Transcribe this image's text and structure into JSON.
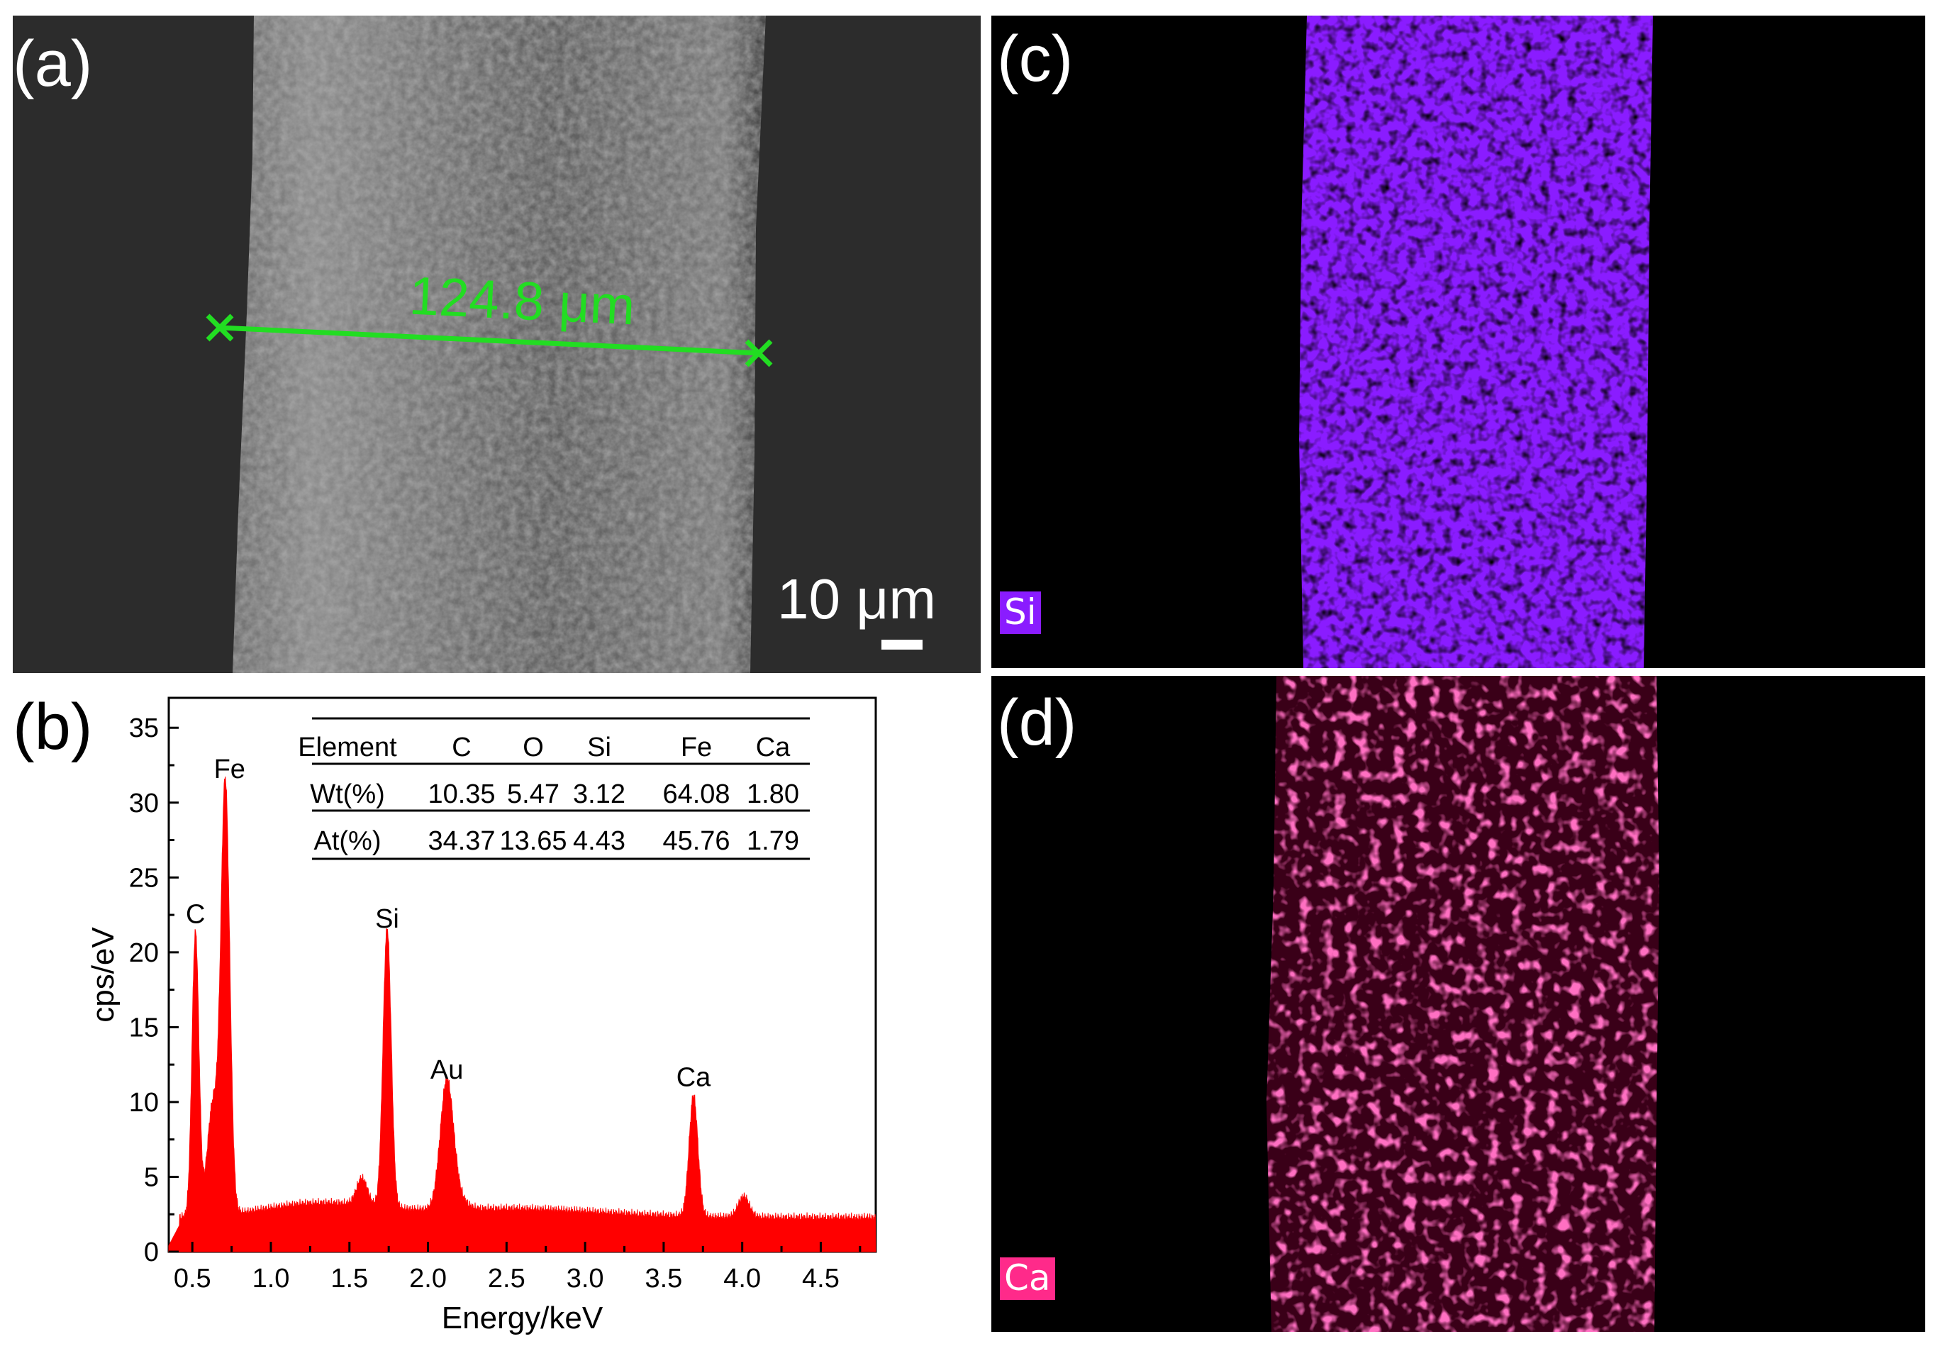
{
  "panels": {
    "a": {
      "letter": "(a)",
      "measure_label": "124.8 μm",
      "scale_bar_label": "10 μm",
      "measure_color": "#22dd22"
    },
    "b": {
      "letter": "(b)",
      "table": {
        "headers": [
          "Element",
          "C",
          "O",
          "Si",
          "Fe",
          "Ca"
        ],
        "rows": [
          [
            "Wt(%)",
            "10.35",
            "5.47",
            "3.12",
            "64.08",
            "1.80"
          ],
          [
            "At(%)",
            "34.37",
            "13.65",
            "4.43",
            "45.76",
            "1.79"
          ]
        ]
      }
    },
    "c": {
      "letter": "(c)",
      "element_tag": "Si",
      "color": "#8a1cff"
    },
    "d": {
      "letter": "(d)",
      "element_tag": "Ca",
      "color": "#ff2a8a"
    }
  },
  "chart_data": {
    "type": "area",
    "title": "",
    "xlabel": "Energy/keV",
    "ylabel": "cps/eV",
    "xlim": [
      0.35,
      4.85
    ],
    "ylim": [
      0,
      37
    ],
    "x_ticks": [
      "0.5",
      "1.0",
      "1.5",
      "2.0",
      "2.5",
      "3.0",
      "3.5",
      "4.0",
      "4.5"
    ],
    "y_ticks": [
      "0",
      "5",
      "10",
      "15",
      "20",
      "25",
      "30",
      "35"
    ],
    "series_color": "#ff0000",
    "baseline": 2.2,
    "peaks": [
      {
        "label": "C",
        "x": 0.52,
        "y": 21.2
      },
      {
        "label": "Fe",
        "x": 0.71,
        "y": 30.9
      },
      {
        "label": "Si",
        "x": 1.74,
        "y": 20.9
      },
      {
        "label": "Au",
        "x": 2.12,
        "y": 10.8
      },
      {
        "label": "Ca",
        "x": 3.69,
        "y": 10.3
      }
    ],
    "minor_features": [
      {
        "x": 0.63,
        "y": 9.6
      },
      {
        "x": 1.58,
        "y": 4.0
      },
      {
        "x": 4.01,
        "y": 3.6
      }
    ]
  }
}
